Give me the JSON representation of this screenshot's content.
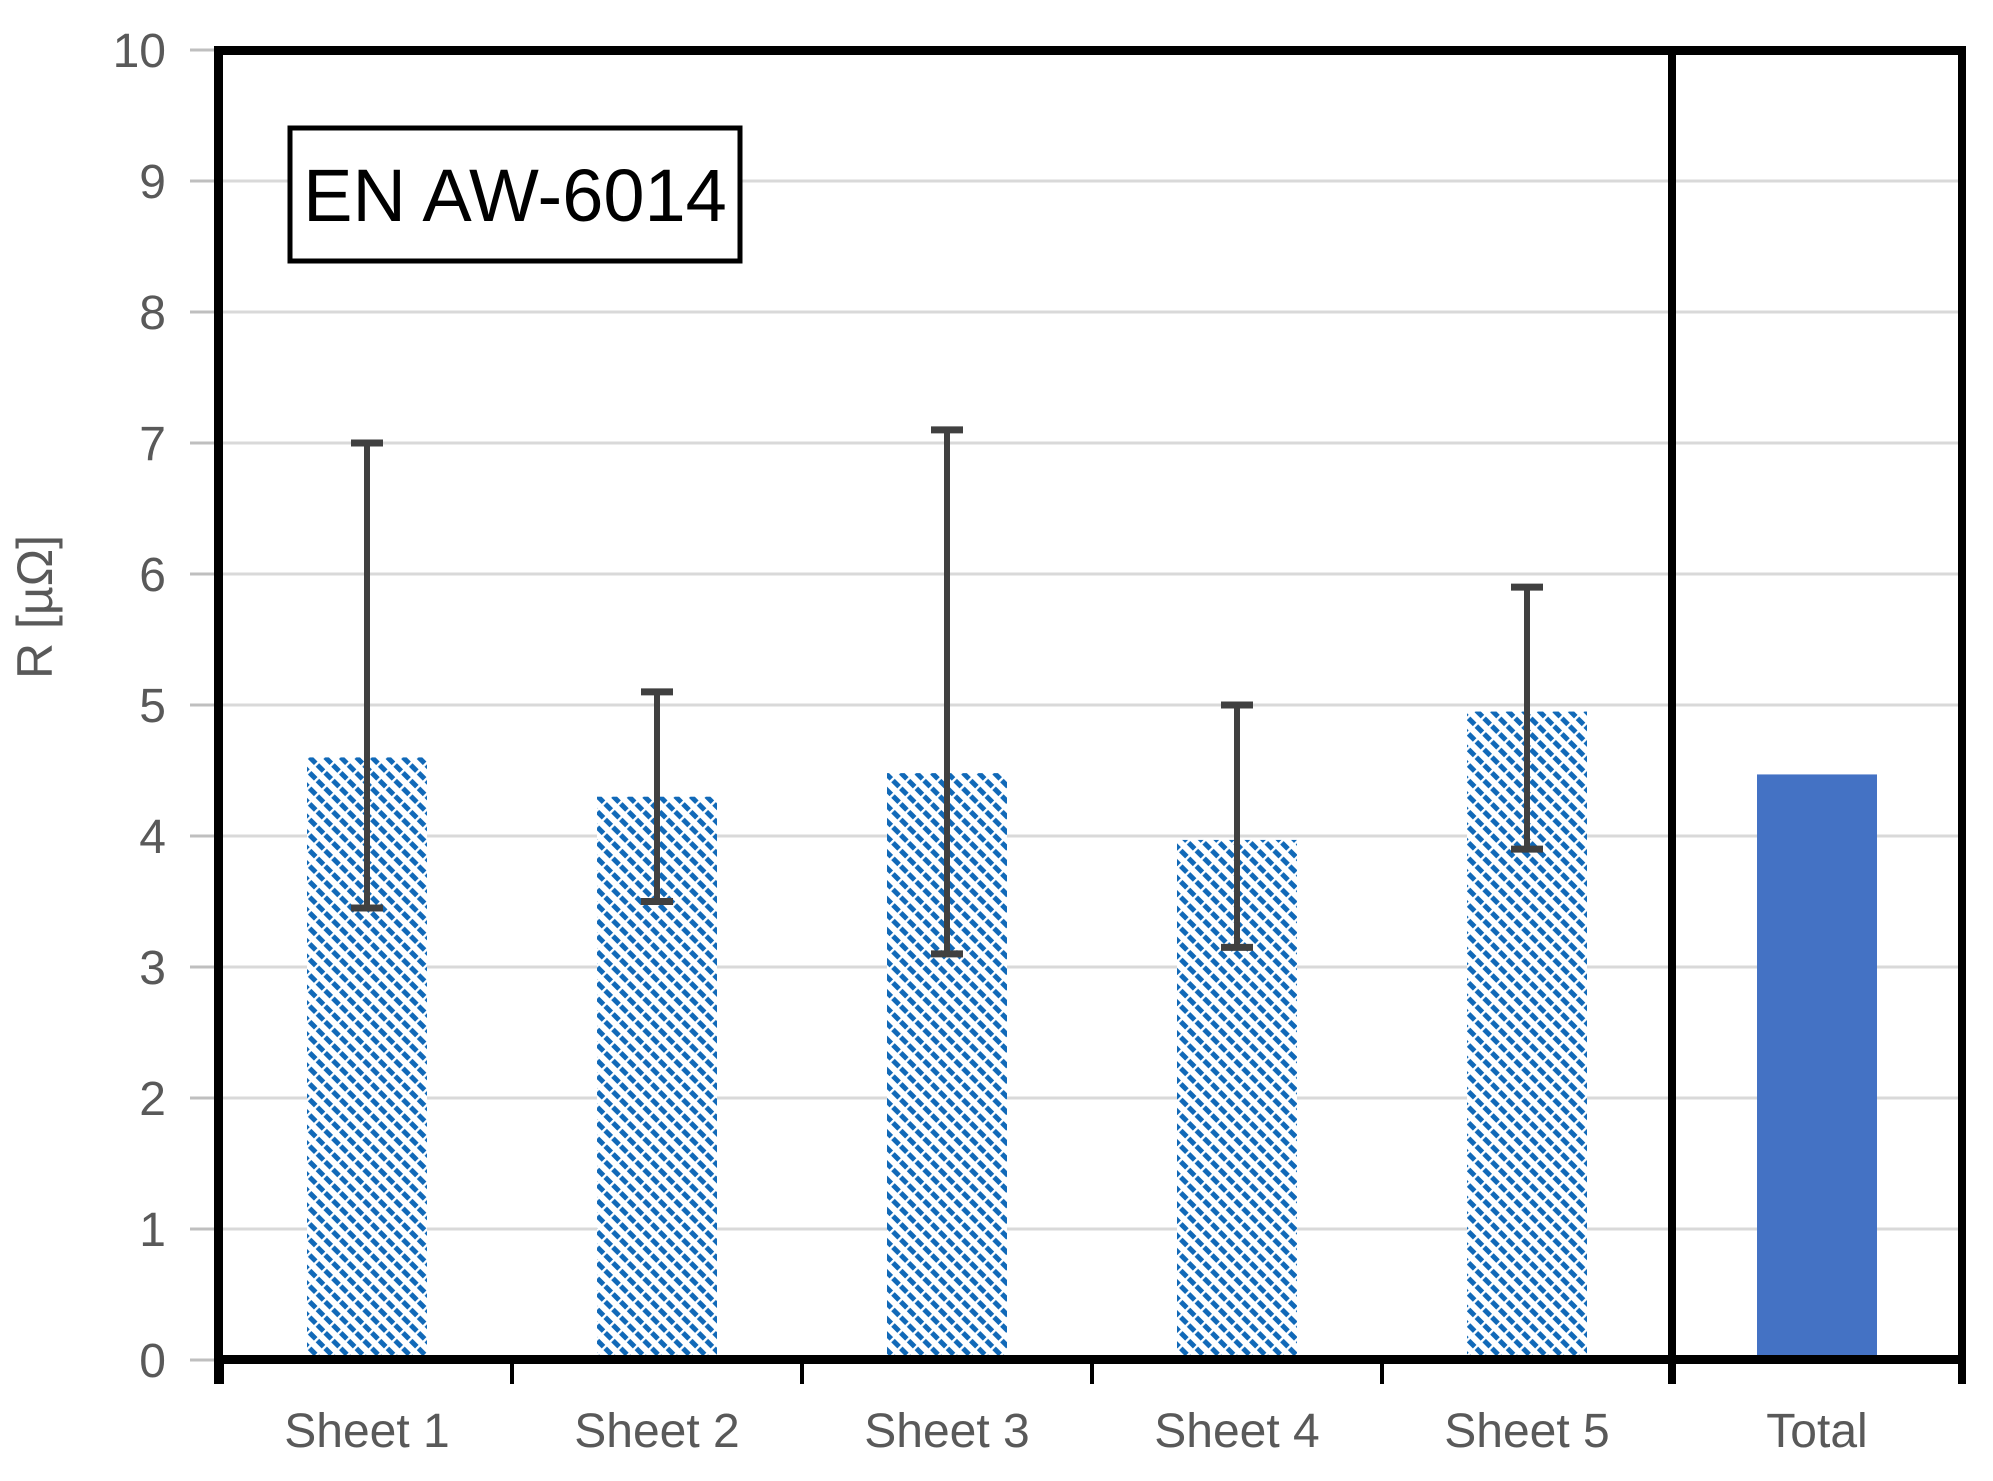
{
  "chart_data": {
    "type": "bar",
    "title_box": "EN AW-6014",
    "ylabel": "R [µΩ]",
    "xlabel": "",
    "ylim": [
      0,
      10
    ],
    "yticks": [
      0,
      1,
      2,
      3,
      4,
      5,
      6,
      7,
      8,
      9,
      10
    ],
    "grid": true,
    "legend": "none",
    "categories": [
      "Sheet 1",
      "Sheet 2",
      "Sheet 3",
      "Sheet 4",
      "Sheet 5",
      "Total"
    ],
    "separator_after_category": "Sheet 5",
    "bars": [
      {
        "label": "Sheet 1",
        "value": 4.6,
        "err_low": 3.45,
        "err_high": 7.0,
        "style": "hatched"
      },
      {
        "label": "Sheet 2",
        "value": 4.3,
        "err_low": 3.5,
        "err_high": 5.1,
        "style": "hatched"
      },
      {
        "label": "Sheet 3",
        "value": 4.48,
        "err_low": 3.1,
        "err_high": 7.1,
        "style": "hatched"
      },
      {
        "label": "Sheet 4",
        "value": 3.97,
        "err_low": 3.15,
        "err_high": 5.0,
        "style": "hatched"
      },
      {
        "label": "Sheet 5",
        "value": 4.95,
        "err_low": 3.9,
        "err_high": 5.9,
        "style": "hatched"
      },
      {
        "label": "Total",
        "value": 4.47,
        "err_low": null,
        "err_high": null,
        "style": "solid"
      }
    ],
    "colors": {
      "hatch_blue": "#1169B8",
      "solid_blue": "#4472C4",
      "gridline": "#D9D9D9",
      "axis": "#000000",
      "tick_label": "#595959",
      "error_bar": "#404040",
      "y_tick": "#BFBFBF",
      "background": "#FFFFFF",
      "title_text": "#000000",
      "title_box_fill": "#FFFFFF"
    }
  }
}
